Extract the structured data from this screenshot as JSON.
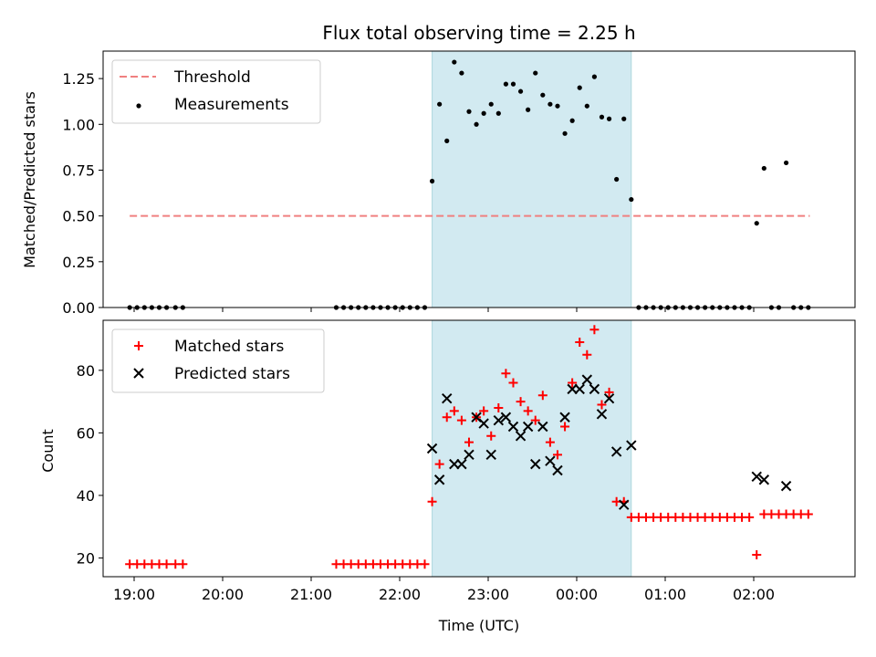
{
  "chart_data": {
    "type": "scatter",
    "title": "Flux total observing time = 2.25 h",
    "xlabel": "Time (UTC)",
    "x_tick_labels": [
      "19:00",
      "20:00",
      "21:00",
      "22:00",
      "23:00",
      "00:00",
      "01:00",
      "02:00"
    ],
    "highlight_span": {
      "start": "22:22",
      "end": "00:37",
      "color": "#add8e6"
    },
    "panels": [
      {
        "name": "ratio",
        "ylabel": "Matched/Predicted stars",
        "ylim": [
          0,
          1.4
        ],
        "y_ticks": [
          "0.00",
          "0.25",
          "0.50",
          "0.75",
          "1.00",
          "1.25"
        ],
        "legend_position": "upper-left",
        "threshold": {
          "name": "Threshold",
          "value": 0.5,
          "x_start": "18:57",
          "x_end": "02:38",
          "color": "#f08080"
        },
        "series": [
          {
            "name": "Measurements",
            "color": "#000000",
            "marker": "dot",
            "points": [
              [
                "18:57",
                0
              ],
              [
                "19:02",
                0
              ],
              [
                "19:07",
                0
              ],
              [
                "19:12",
                0
              ],
              [
                "19:17",
                0
              ],
              [
                "19:22",
                0
              ],
              [
                "19:28",
                0
              ],
              [
                "19:33",
                0
              ],
              [
                "21:17",
                0
              ],
              [
                "21:22",
                0
              ],
              [
                "21:27",
                0
              ],
              [
                "21:32",
                0
              ],
              [
                "21:37",
                0
              ],
              [
                "21:42",
                0
              ],
              [
                "21:47",
                0
              ],
              [
                "21:52",
                0
              ],
              [
                "21:57",
                0
              ],
              [
                "22:02",
                0
              ],
              [
                "22:07",
                0
              ],
              [
                "22:12",
                0
              ],
              [
                "22:17",
                0
              ],
              [
                "22:22",
                0.69
              ],
              [
                "22:27",
                1.11
              ],
              [
                "22:32",
                0.91
              ],
              [
                "22:37",
                1.34
              ],
              [
                "22:42",
                1.28
              ],
              [
                "22:47",
                1.07
              ],
              [
                "22:52",
                1.0
              ],
              [
                "22:57",
                1.06
              ],
              [
                "23:02",
                1.11
              ],
              [
                "23:07",
                1.06
              ],
              [
                "23:12",
                1.22
              ],
              [
                "23:17",
                1.22
              ],
              [
                "23:22",
                1.18
              ],
              [
                "23:27",
                1.08
              ],
              [
                "23:32",
                1.28
              ],
              [
                "23:37",
                1.16
              ],
              [
                "23:42",
                1.11
              ],
              [
                "23:47",
                1.1
              ],
              [
                "23:52",
                0.95
              ],
              [
                "23:57",
                1.02
              ],
              [
                "00:02",
                1.2
              ],
              [
                "00:07",
                1.1
              ],
              [
                "00:12",
                1.26
              ],
              [
                "00:17",
                1.04
              ],
              [
                "00:22",
                1.03
              ],
              [
                "00:27",
                0.7
              ],
              [
                "00:32",
                1.03
              ],
              [
                "00:37",
                0.59
              ],
              [
                "00:42",
                0
              ],
              [
                "00:47",
                0
              ],
              [
                "00:52",
                0
              ],
              [
                "00:57",
                0
              ],
              [
                "01:02",
                0
              ],
              [
                "01:07",
                0
              ],
              [
                "01:12",
                0
              ],
              [
                "01:17",
                0
              ],
              [
                "01:22",
                0
              ],
              [
                "01:27",
                0
              ],
              [
                "01:32",
                0
              ],
              [
                "01:37",
                0
              ],
              [
                "01:42",
                0
              ],
              [
                "01:47",
                0
              ],
              [
                "01:52",
                0
              ],
              [
                "01:57",
                0
              ],
              [
                "02:02",
                0.46
              ],
              [
                "02:07",
                0.76
              ],
              [
                "02:12",
                0
              ],
              [
                "02:17",
                0
              ],
              [
                "02:22",
                0.79
              ],
              [
                "02:27",
                0
              ],
              [
                "02:32",
                0
              ],
              [
                "02:37",
                0
              ]
            ]
          }
        ]
      },
      {
        "name": "counts",
        "ylabel": "Count",
        "ylim": [
          14,
          96
        ],
        "y_ticks": [
          "20",
          "40",
          "60",
          "80"
        ],
        "legend_position": "upper-left",
        "series": [
          {
            "name": "Matched stars",
            "color": "#ff0000",
            "marker": "plus",
            "points": [
              [
                "18:57",
                18
              ],
              [
                "19:02",
                18
              ],
              [
                "19:07",
                18
              ],
              [
                "19:12",
                18
              ],
              [
                "19:17",
                18
              ],
              [
                "19:22",
                18
              ],
              [
                "19:28",
                18
              ],
              [
                "19:33",
                18
              ],
              [
                "21:17",
                18
              ],
              [
                "21:22",
                18
              ],
              [
                "21:27",
                18
              ],
              [
                "21:32",
                18
              ],
              [
                "21:37",
                18
              ],
              [
                "21:42",
                18
              ],
              [
                "21:47",
                18
              ],
              [
                "21:52",
                18
              ],
              [
                "21:57",
                18
              ],
              [
                "22:02",
                18
              ],
              [
                "22:07",
                18
              ],
              [
                "22:12",
                18
              ],
              [
                "22:17",
                18
              ],
              [
                "22:22",
                38
              ],
              [
                "22:27",
                50
              ],
              [
                "22:32",
                65
              ],
              [
                "22:37",
                67
              ],
              [
                "22:42",
                64
              ],
              [
                "22:47",
                57
              ],
              [
                "22:52",
                65
              ],
              [
                "22:57",
                67
              ],
              [
                "23:02",
                59
              ],
              [
                "23:07",
                68
              ],
              [
                "23:12",
                79
              ],
              [
                "23:17",
                76
              ],
              [
                "23:22",
                70
              ],
              [
                "23:27",
                67
              ],
              [
                "23:32",
                64
              ],
              [
                "23:37",
                72
              ],
              [
                "23:42",
                57
              ],
              [
                "23:47",
                53
              ],
              [
                "23:52",
                62
              ],
              [
                "23:57",
                76
              ],
              [
                "00:02",
                89
              ],
              [
                "00:07",
                85
              ],
              [
                "00:12",
                93
              ],
              [
                "00:17",
                69
              ],
              [
                "00:22",
                73
              ],
              [
                "00:27",
                38
              ],
              [
                "00:32",
                38
              ],
              [
                "00:37",
                33
              ],
              [
                "00:42",
                33
              ],
              [
                "00:47",
                33
              ],
              [
                "00:52",
                33
              ],
              [
                "00:57",
                33
              ],
              [
                "01:02",
                33
              ],
              [
                "01:07",
                33
              ],
              [
                "01:12",
                33
              ],
              [
                "01:17",
                33
              ],
              [
                "01:22",
                33
              ],
              [
                "01:27",
                33
              ],
              [
                "01:32",
                33
              ],
              [
                "01:37",
                33
              ],
              [
                "01:42",
                33
              ],
              [
                "01:47",
                33
              ],
              [
                "01:52",
                33
              ],
              [
                "01:57",
                33
              ],
              [
                "02:02",
                21
              ],
              [
                "02:07",
                34
              ],
              [
                "02:12",
                34
              ],
              [
                "02:17",
                34
              ],
              [
                "02:22",
                34
              ],
              [
                "02:27",
                34
              ],
              [
                "02:32",
                34
              ],
              [
                "02:37",
                34
              ]
            ]
          },
          {
            "name": "Predicted stars",
            "color": "#000000",
            "marker": "x",
            "points": [
              [
                "22:22",
                55
              ],
              [
                "22:27",
                45
              ],
              [
                "22:32",
                71
              ],
              [
                "22:37",
                50
              ],
              [
                "22:42",
                50
              ],
              [
                "22:47",
                53
              ],
              [
                "22:52",
                65
              ],
              [
                "22:57",
                63
              ],
              [
                "23:02",
                53
              ],
              [
                "23:07",
                64
              ],
              [
                "23:12",
                65
              ],
              [
                "23:17",
                62
              ],
              [
                "23:22",
                59
              ],
              [
                "23:27",
                62
              ],
              [
                "23:32",
                50
              ],
              [
                "23:37",
                62
              ],
              [
                "23:42",
                51
              ],
              [
                "23:47",
                48
              ],
              [
                "23:52",
                65
              ],
              [
                "23:57",
                74
              ],
              [
                "00:02",
                74
              ],
              [
                "00:07",
                77
              ],
              [
                "00:12",
                74
              ],
              [
                "00:17",
                66
              ],
              [
                "00:22",
                71
              ],
              [
                "00:27",
                54
              ],
              [
                "00:32",
                37
              ],
              [
                "00:37",
                56
              ],
              [
                "02:02",
                46
              ],
              [
                "02:07",
                45
              ],
              [
                "02:22",
                43
              ]
            ]
          }
        ]
      }
    ]
  }
}
